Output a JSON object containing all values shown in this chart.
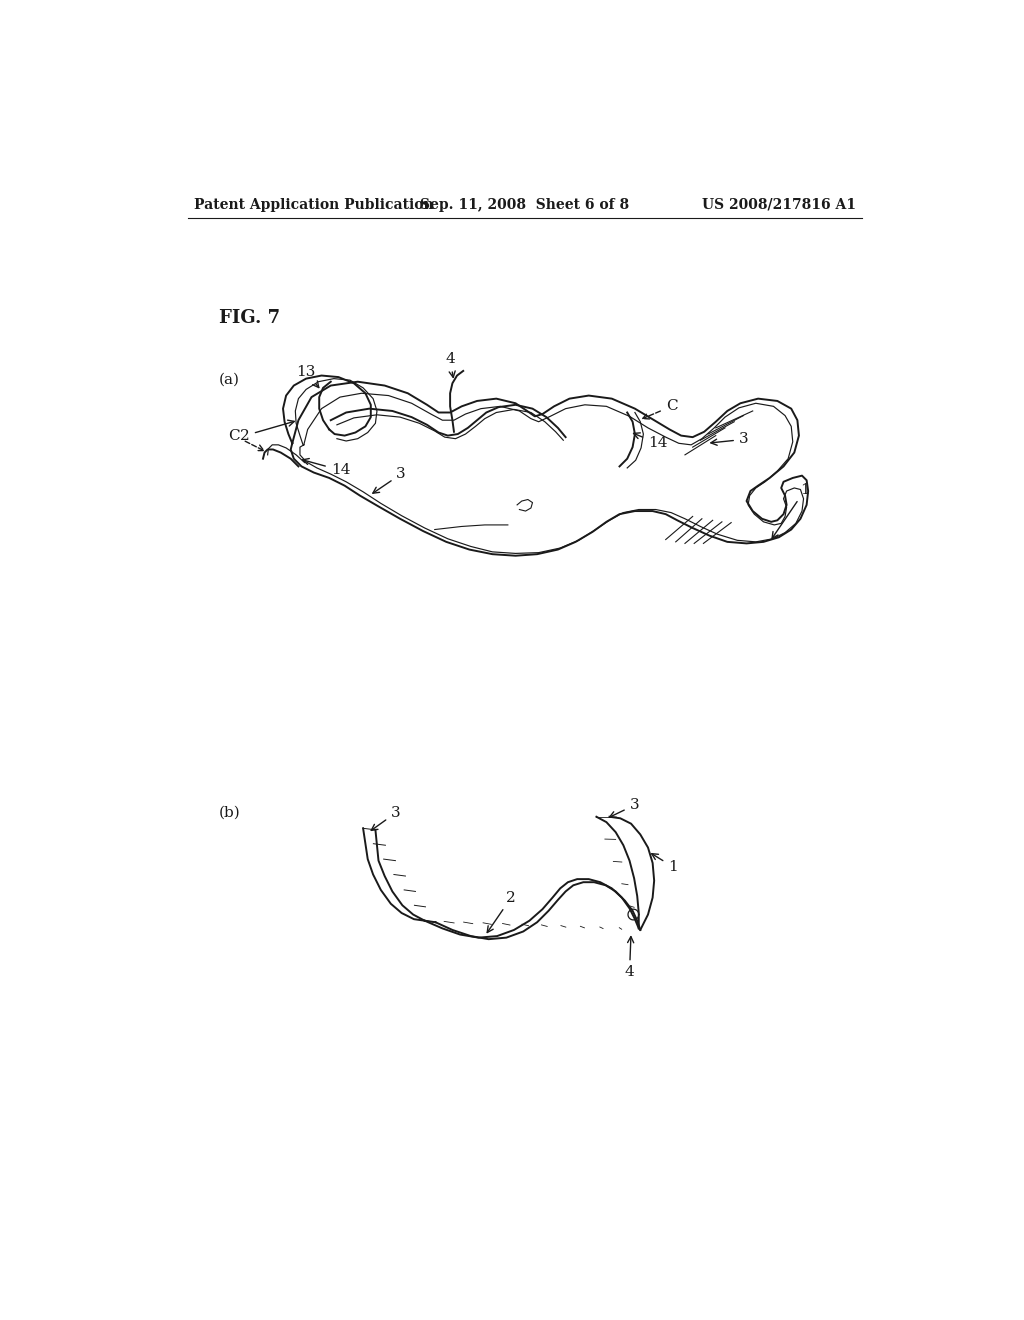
{
  "background_color": "#ffffff",
  "line_color": "#1a1a1a",
  "header_left": "Patent Application Publication",
  "header_center": "Sep. 11, 2008  Sheet 6 of 8",
  "header_right": "US 2008/217816 A1",
  "fig_label": "FIG. 7",
  "header_fontsize": 10,
  "fig_label_fontsize": 13,
  "sub_label_fontsize": 11,
  "annotation_fontsize": 11
}
